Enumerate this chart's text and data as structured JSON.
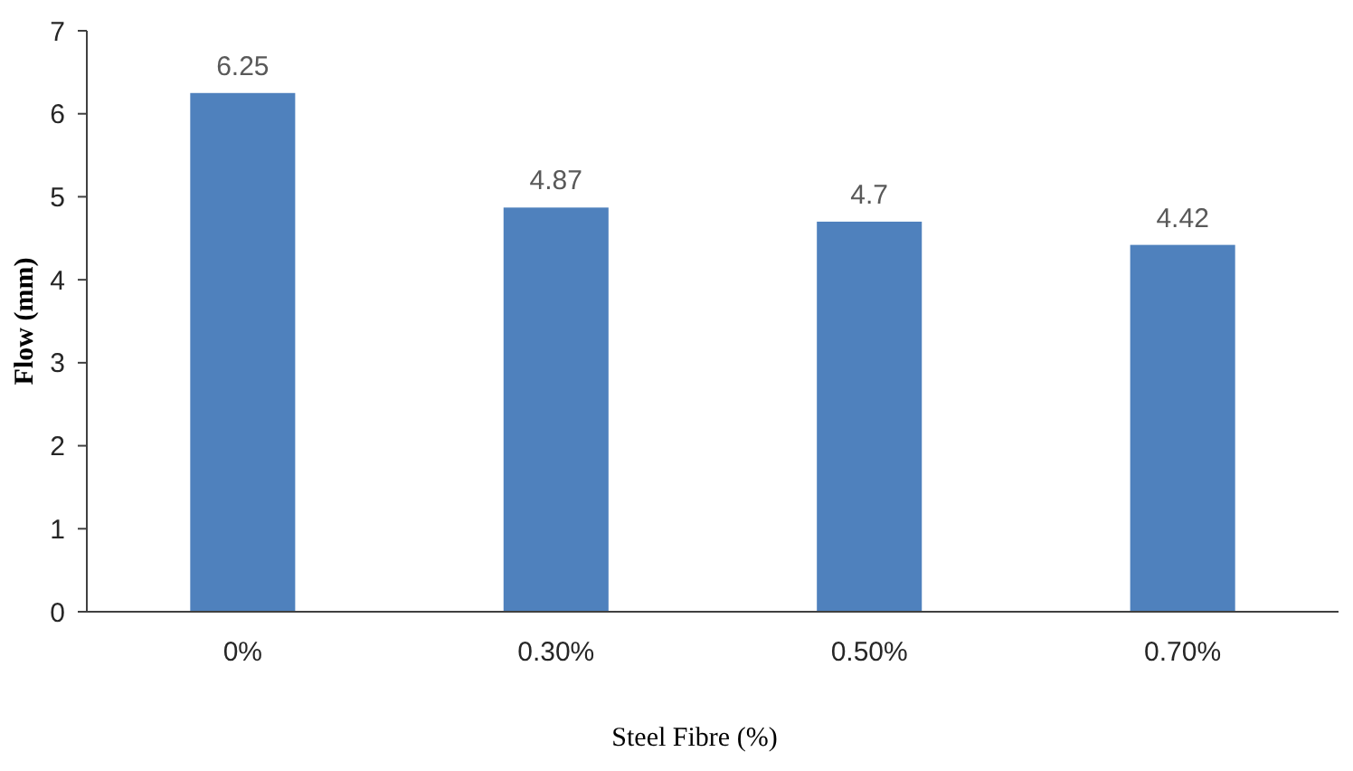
{
  "chart_data": {
    "type": "bar",
    "xlabel": "Steel Fibre (%)",
    "ylabel": "Flow (mm)",
    "categories": [
      "0%",
      "0.30%",
      "0.50%",
      "0.70%"
    ],
    "values": [
      6.25,
      4.87,
      4.7,
      4.42
    ],
    "color": "#4f81bd",
    "ylim": [
      0,
      7
    ],
    "yticks": [
      0,
      1,
      2,
      3,
      4,
      5,
      6,
      7
    ],
    "data_labels": true,
    "grid": false
  }
}
